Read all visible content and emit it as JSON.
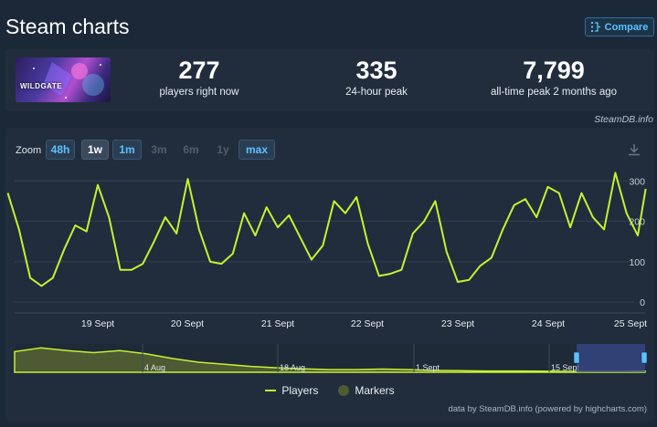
{
  "header": {
    "title": "Steam charts",
    "compare_label": "Compare"
  },
  "game": {
    "logo_text": "WILDGATE"
  },
  "stats": [
    {
      "value": "277",
      "label": "players right now"
    },
    {
      "value": "335",
      "label": "24-hour peak"
    },
    {
      "value": "7,799",
      "label": "all-time peak 2 months ago"
    }
  ],
  "steamdb_note": "SteamDB.info",
  "zoom": {
    "label": "Zoom",
    "buttons": [
      {
        "label": "48h",
        "state": "active"
      },
      {
        "label": "1w",
        "state": "current"
      },
      {
        "label": "1m",
        "state": "active"
      },
      {
        "label": "3m",
        "state": "disabled"
      },
      {
        "label": "6m",
        "state": "disabled"
      },
      {
        "label": "1y",
        "state": "disabled"
      },
      {
        "label": "max",
        "state": "active"
      }
    ]
  },
  "colors": {
    "line": "#c7f033",
    "navigator_fill": "#4d5a32",
    "selection": "#3a4a8a",
    "grid": "#33404f"
  },
  "chart_data": {
    "type": "line",
    "series": [
      {
        "name": "Players",
        "x": [
          "18 Sept 00:00",
          "18 Sept 03:00",
          "18 Sept 06:00",
          "18 Sept 09:00",
          "18 Sept 12:00",
          "18 Sept 15:00",
          "18 Sept 18:00",
          "18 Sept 21:00",
          "19 Sept 00:00",
          "19 Sept 03:00",
          "19 Sept 06:00",
          "19 Sept 09:00",
          "19 Sept 12:00",
          "19 Sept 15:00",
          "19 Sept 18:00",
          "19 Sept 21:00",
          "20 Sept 00:00",
          "20 Sept 03:00",
          "20 Sept 06:00",
          "20 Sept 09:00",
          "20 Sept 12:00",
          "20 Sept 15:00",
          "20 Sept 18:00",
          "20 Sept 21:00",
          "21 Sept 00:00",
          "21 Sept 03:00",
          "21 Sept 06:00",
          "21 Sept 09:00",
          "21 Sept 12:00",
          "21 Sept 15:00",
          "21 Sept 18:00",
          "21 Sept 21:00",
          "22 Sept 00:00",
          "22 Sept 03:00",
          "22 Sept 06:00",
          "22 Sept 09:00",
          "22 Sept 12:00",
          "22 Sept 15:00",
          "22 Sept 18:00",
          "22 Sept 21:00",
          "23 Sept 00:00",
          "23 Sept 03:00",
          "23 Sept 06:00",
          "23 Sept 09:00",
          "23 Sept 12:00",
          "23 Sept 15:00",
          "23 Sept 18:00",
          "23 Sept 21:00",
          "24 Sept 00:00",
          "24 Sept 03:00",
          "24 Sept 06:00",
          "24 Sept 09:00",
          "24 Sept 12:00",
          "24 Sept 15:00",
          "24 Sept 18:00",
          "24 Sept 21:00",
          "25 Sept 00:00",
          "25 Sept 02:00"
        ],
        "values": [
          270,
          180,
          60,
          40,
          60,
          130,
          190,
          175,
          290,
          210,
          80,
          80,
          95,
          150,
          210,
          170,
          305,
          180,
          100,
          95,
          120,
          220,
          165,
          235,
          185,
          215,
          160,
          105,
          140,
          250,
          220,
          260,
          145,
          65,
          70,
          80,
          170,
          200,
          250,
          125,
          50,
          55,
          90,
          110,
          180,
          240,
          255,
          210,
          285,
          270,
          185,
          270,
          210,
          180,
          320,
          220,
          165,
          280
        ]
      }
    ],
    "x_tick_labels": [
      "19 Sept",
      "20 Sept",
      "21 Sept",
      "22 Sept",
      "23 Sept",
      "24 Sept",
      "25 Sept"
    ],
    "y_tick_labels": [
      "0",
      "100",
      "200",
      "300"
    ],
    "ylim": [
      -20,
      330
    ],
    "grid": true,
    "legend": {
      "position": "bottom-center",
      "entries": [
        "Players",
        "Markers"
      ]
    },
    "navigator": {
      "tick_labels": [
        "4 Aug",
        "18 Aug",
        "1 Sept",
        "15 Sept"
      ],
      "values": [
        0.78,
        0.92,
        0.82,
        0.74,
        0.82,
        0.7,
        0.52,
        0.38,
        0.3,
        0.22,
        0.17,
        0.13,
        0.1,
        0.1,
        0.12,
        0.1,
        0.07,
        0.06,
        0.05,
        0.05,
        0.04,
        0.03,
        0.02,
        0.02,
        0.04
      ]
    }
  },
  "credits": "data by SteamDB.info (powered by highcharts.com)"
}
